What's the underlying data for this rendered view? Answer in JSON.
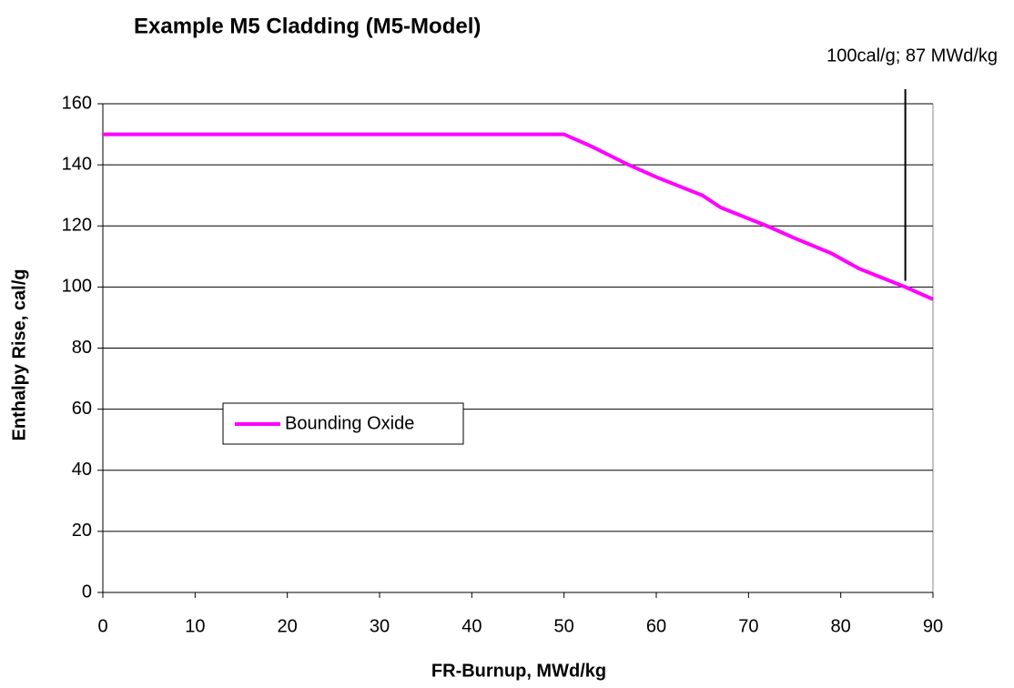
{
  "chart_data": {
    "type": "line",
    "title": "Example M5 Cladding (M5-Model)",
    "xlabel": "FR-Burnup, MWd/kg",
    "ylabel": "Enthalpy Rise, cal/g",
    "series": [
      {
        "name": "Bounding Oxide",
        "color": "#ff00ff",
        "x": [
          0,
          50,
          53,
          57,
          60,
          65,
          67,
          72,
          75,
          79,
          82,
          87,
          90
        ],
        "values": [
          150,
          150,
          146,
          140,
          136,
          130,
          126,
          120,
          116,
          111,
          106,
          100,
          96
        ]
      }
    ],
    "xlim": [
      0,
      90
    ],
    "xticks": [
      0,
      10,
      20,
      30,
      40,
      50,
      60,
      70,
      80,
      90
    ],
    "ylim": [
      0,
      160
    ],
    "yticks": [
      0,
      20,
      40,
      60,
      80,
      100,
      120,
      140,
      160
    ],
    "grid": true,
    "legend": "left",
    "annotations": [
      {
        "text": "100cal/g; 87 MWd/kg",
        "x": 87,
        "y": 102
      }
    ]
  }
}
